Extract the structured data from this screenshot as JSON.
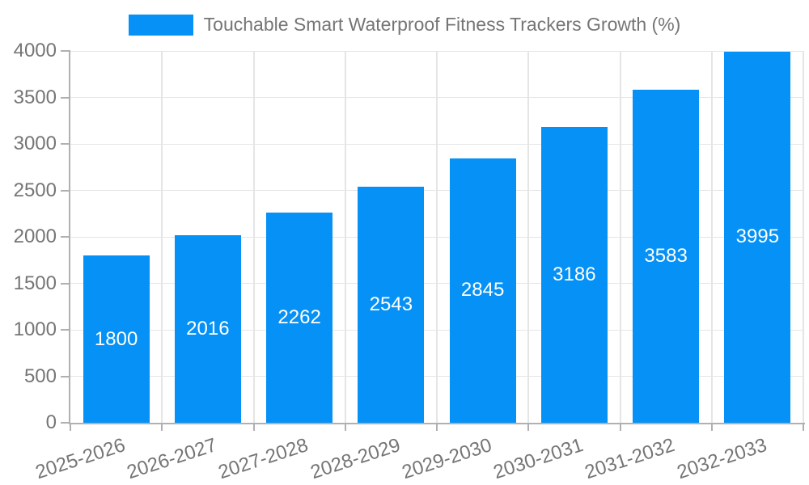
{
  "chart_data": {
    "type": "bar",
    "title": "Touchable Smart Waterproof Fitness Trackers Growth (%)",
    "categories": [
      "2025-2026",
      "2026-2027",
      "2027-2028",
      "2028-2029",
      "2029-2030",
      "2030-2031",
      "2031-2032",
      "2032-2033"
    ],
    "values": [
      1800,
      2016,
      2262,
      2543,
      2845,
      3186,
      3583,
      3995
    ],
    "xlabel": "",
    "ylabel": "",
    "ylim": [
      0,
      4000
    ],
    "ytick_step": 500,
    "grid": true,
    "legend_position": "top-center",
    "bar_color": "#0591f5",
    "value_label_color": "#ffffff",
    "axis_color": "#b0b0b0",
    "grid_color": "#e5e5e5",
    "tick_label_color": "#757575",
    "x_label_rotation_deg": -18
  }
}
